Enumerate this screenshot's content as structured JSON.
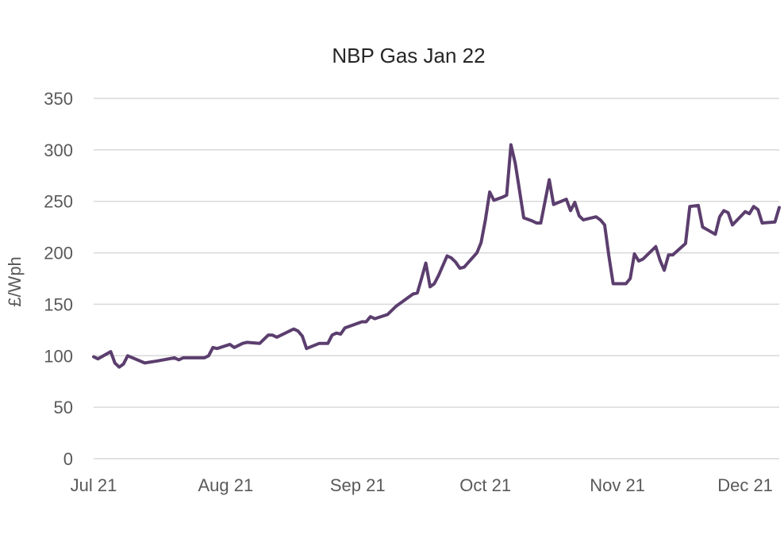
{
  "chart_data": {
    "type": "line",
    "title": "NBP Gas Jan 22",
    "xlabel": "",
    "ylabel": "£/Wph",
    "ylim": [
      0,
      350
    ],
    "yticks": [
      0,
      50,
      100,
      150,
      200,
      250,
      300,
      350
    ],
    "x_ticks": [
      {
        "label": "Jul 21",
        "date": "2021-07-01"
      },
      {
        "label": "Aug 21",
        "date": "2021-08-01"
      },
      {
        "label": "Sep 21",
        "date": "2021-09-01"
      },
      {
        "label": "Oct 21",
        "date": "2021-10-01"
      },
      {
        "label": "Nov 21",
        "date": "2021-11-01"
      },
      {
        "label": "Dec 21",
        "date": "2021-12-01"
      }
    ],
    "xlim": [
      "2021-07-01",
      "2021-12-06"
    ],
    "grid": true,
    "legend": "none",
    "series": [
      {
        "color": "#5b3e6e",
        "points": [
          [
            "2021-07-01",
            99
          ],
          [
            "2021-07-02",
            97
          ],
          [
            "2021-07-05",
            104
          ],
          [
            "2021-07-06",
            93
          ],
          [
            "2021-07-07",
            89
          ],
          [
            "2021-07-08",
            92
          ],
          [
            "2021-07-09",
            100
          ],
          [
            "2021-07-13",
            93
          ],
          [
            "2021-07-16",
            95
          ],
          [
            "2021-07-20",
            98
          ],
          [
            "2021-07-21",
            96
          ],
          [
            "2021-07-22",
            98
          ],
          [
            "2021-07-27",
            98
          ],
          [
            "2021-07-28",
            100
          ],
          [
            "2021-07-29",
            108
          ],
          [
            "2021-07-30",
            107
          ],
          [
            "2021-08-02",
            111
          ],
          [
            "2021-08-03",
            108
          ],
          [
            "2021-08-04",
            110
          ],
          [
            "2021-08-05",
            112
          ],
          [
            "2021-08-06",
            113
          ],
          [
            "2021-08-09",
            112
          ],
          [
            "2021-08-11",
            120
          ],
          [
            "2021-08-12",
            120
          ],
          [
            "2021-08-13",
            118
          ],
          [
            "2021-08-17",
            126
          ],
          [
            "2021-08-18",
            124
          ],
          [
            "2021-08-19",
            119
          ],
          [
            "2021-08-20",
            107
          ],
          [
            "2021-08-23",
            112
          ],
          [
            "2021-08-25",
            112
          ],
          [
            "2021-08-26",
            120
          ],
          [
            "2021-08-27",
            122
          ],
          [
            "2021-08-28",
            121
          ],
          [
            "2021-08-29",
            127
          ],
          [
            "2021-09-02",
            133
          ],
          [
            "2021-09-03",
            133
          ],
          [
            "2021-09-04",
            138
          ],
          [
            "2021-09-05",
            136
          ],
          [
            "2021-09-08",
            140
          ],
          [
            "2021-09-10",
            148
          ],
          [
            "2021-09-14",
            160
          ],
          [
            "2021-09-15",
            161
          ],
          [
            "2021-09-16",
            175
          ],
          [
            "2021-09-17",
            190
          ],
          [
            "2021-09-18",
            167
          ],
          [
            "2021-09-19",
            170
          ],
          [
            "2021-09-20",
            178
          ],
          [
            "2021-09-22",
            197
          ],
          [
            "2021-09-23",
            195
          ],
          [
            "2021-09-24",
            191
          ],
          [
            "2021-09-25",
            185
          ],
          [
            "2021-09-26",
            186
          ],
          [
            "2021-09-29",
            200
          ],
          [
            "2021-09-30",
            210
          ],
          [
            "2021-10-01",
            232
          ],
          [
            "2021-10-02",
            259
          ],
          [
            "2021-10-03",
            251
          ],
          [
            "2021-10-05",
            254
          ],
          [
            "2021-10-06",
            256
          ],
          [
            "2021-10-07",
            305
          ],
          [
            "2021-10-08",
            287
          ],
          [
            "2021-10-09",
            261
          ],
          [
            "2021-10-10",
            234
          ],
          [
            "2021-10-12",
            231
          ],
          [
            "2021-10-13",
            229
          ],
          [
            "2021-10-14",
            229
          ],
          [
            "2021-10-16",
            271
          ],
          [
            "2021-10-17",
            247
          ],
          [
            "2021-10-20",
            252
          ],
          [
            "2021-10-21",
            241
          ],
          [
            "2021-10-22",
            249
          ],
          [
            "2021-10-23",
            236
          ],
          [
            "2021-10-24",
            232
          ],
          [
            "2021-10-27",
            235
          ],
          [
            "2021-10-28",
            232
          ],
          [
            "2021-10-29",
            227
          ],
          [
            "2021-10-30",
            197
          ],
          [
            "2021-10-31",
            170
          ],
          [
            "2021-11-03",
            170
          ],
          [
            "2021-11-04",
            175
          ],
          [
            "2021-11-05",
            199
          ],
          [
            "2021-11-06",
            192
          ],
          [
            "2021-11-07",
            194
          ],
          [
            "2021-11-10",
            206
          ],
          [
            "2021-11-11",
            193
          ],
          [
            "2021-11-12",
            183
          ],
          [
            "2021-11-13",
            198
          ],
          [
            "2021-11-14",
            198
          ],
          [
            "2021-11-17",
            209
          ],
          [
            "2021-11-18",
            245
          ],
          [
            "2021-11-20",
            246
          ],
          [
            "2021-11-21",
            225
          ],
          [
            "2021-11-24",
            218
          ],
          [
            "2021-11-25",
            235
          ],
          [
            "2021-11-26",
            241
          ],
          [
            "2021-11-27",
            239
          ],
          [
            "2021-11-28",
            227
          ],
          [
            "2021-12-01",
            240
          ],
          [
            "2021-12-02",
            238
          ],
          [
            "2021-12-03",
            245
          ],
          [
            "2021-12-04",
            242
          ],
          [
            "2021-12-05",
            229
          ],
          [
            "2021-12-08",
            230
          ],
          [
            "2021-12-09",
            244
          ]
        ]
      }
    ]
  }
}
